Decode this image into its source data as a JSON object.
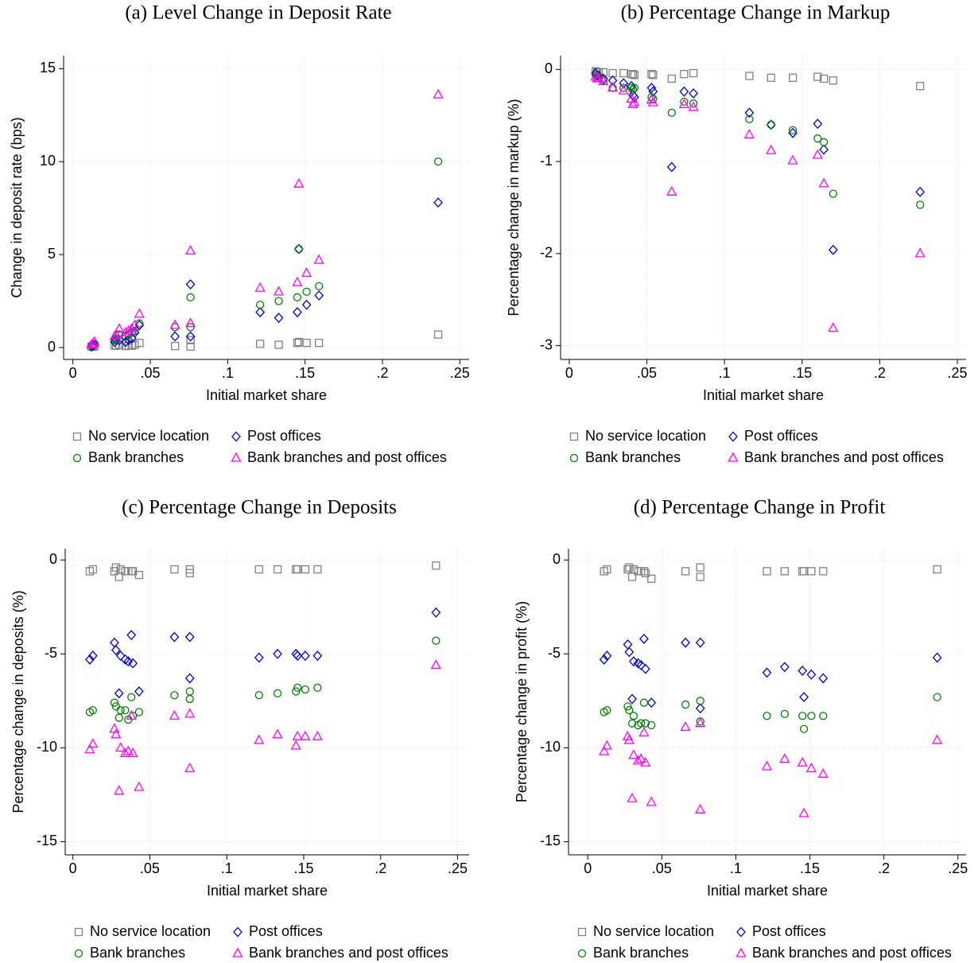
{
  "chart_data": [
    {
      "type": "scatter",
      "title": "(a) Level Change in Deposit Rate",
      "x_label": "Initial market share",
      "y_label": "Change in deposit rate (bps)",
      "x": [
        0.012,
        0.013,
        0.014,
        0.027,
        0.028,
        0.03,
        0.034,
        0.036,
        0.038,
        0.04,
        0.043,
        0.066,
        0.076,
        0.076,
        0.121,
        0.133,
        0.145,
        0.146,
        0.151,
        0.159,
        0.236
      ],
      "series": [
        {
          "name": "No service location",
          "color": "#808080",
          "marker": "square",
          "values": [
            0.05,
            0.05,
            0.08,
            0.1,
            0.1,
            0.15,
            0.08,
            0.1,
            0.1,
            0.15,
            0.25,
            0.08,
            0.05,
            0.4,
            0.2,
            0.15,
            0.25,
            0.3,
            0.25,
            0.25,
            0.7
          ]
        },
        {
          "name": "Post offices",
          "color": "#0000cc",
          "marker": "diamond",
          "values": [
            0.05,
            0.1,
            0.15,
            0.3,
            0.4,
            0.4,
            0.3,
            0.4,
            0.5,
            0.8,
            1.2,
            0.6,
            0.6,
            3.4,
            1.9,
            1.6,
            1.9,
            5.3,
            2.3,
            2.8,
            7.8
          ]
        },
        {
          "name": "Bank branches",
          "color": "#008000",
          "marker": "circle",
          "values": [
            0.1,
            0.15,
            0.2,
            0.4,
            0.5,
            0.7,
            0.6,
            0.7,
            0.8,
            0.9,
            1.3,
            1.1,
            1.1,
            2.7,
            2.3,
            2.5,
            2.7,
            5.3,
            3.0,
            3.3,
            10.0
          ]
        },
        {
          "name": "Bank branches and post offices",
          "color": "#ff00ff",
          "marker": "triangle",
          "values": [
            0.15,
            0.2,
            0.3,
            0.6,
            0.7,
            1.0,
            0.8,
            0.9,
            1.0,
            1.2,
            1.8,
            1.2,
            1.3,
            5.2,
            3.2,
            3.0,
            3.5,
            8.8,
            4.0,
            4.7,
            13.6
          ]
        }
      ],
      "xlim": [
        -0.006,
        0.256
      ],
      "ylim": [
        -0.64,
        15.7
      ],
      "xticks": [
        0,
        {
          "value": 0.05,
          "label": ".05"
        },
        {
          "value": 0.1,
          "label": ".1"
        },
        {
          "value": 0.15,
          "label": ".15"
        },
        {
          "value": 0.2,
          "label": ".2"
        },
        {
          "value": 0.25,
          "label": ".25"
        }
      ],
      "yticks": [
        0,
        5,
        10,
        15
      ],
      "grid": true,
      "legend": "bottom"
    },
    {
      "type": "scatter",
      "title": "(b) Percentage Change in Markup",
      "x_label": "Initial market share",
      "y_label": "Percentage change in markup (%)",
      "x": [
        0.017,
        0.018,
        0.019,
        0.022,
        0.028,
        0.035,
        0.04,
        0.041,
        0.042,
        0.053,
        0.054,
        0.066,
        0.074,
        0.08,
        0.116,
        0.13,
        0.144,
        0.16,
        0.164,
        0.17,
        0.226
      ],
      "series": [
        {
          "name": "No service location",
          "color": "#808080",
          "marker": "square",
          "values": [
            -0.02,
            -0.03,
            -0.03,
            -0.03,
            -0.04,
            -0.04,
            -0.05,
            -0.05,
            -0.06,
            -0.05,
            -0.06,
            -0.1,
            -0.05,
            -0.04,
            -0.07,
            -0.09,
            -0.09,
            -0.08,
            -0.1,
            -0.12,
            -0.18
          ]
        },
        {
          "name": "Post offices",
          "color": "#0000cc",
          "marker": "diamond",
          "values": [
            -0.04,
            -0.06,
            -0.07,
            -0.1,
            -0.12,
            -0.15,
            -0.18,
            -0.28,
            -0.3,
            -0.2,
            -0.24,
            -1.06,
            -0.24,
            -0.26,
            -0.47,
            -0.6,
            -0.69,
            -0.59,
            -0.87,
            -1.96,
            -1.33
          ]
        },
        {
          "name": "Bank branches",
          "color": "#008000",
          "marker": "circle",
          "values": [
            -0.06,
            -0.08,
            -0.08,
            -0.12,
            -0.2,
            -0.2,
            -0.2,
            -0.22,
            -0.2,
            -0.3,
            -0.32,
            -0.47,
            -0.35,
            -0.37,
            -0.54,
            -0.6,
            -0.66,
            -0.75,
            -0.79,
            -1.35,
            -1.47
          ]
        },
        {
          "name": "Bank branches and post offices",
          "color": "#ff00ff",
          "marker": "triangle",
          "values": [
            -0.08,
            -0.1,
            -0.1,
            -0.13,
            -0.2,
            -0.23,
            -0.32,
            -0.38,
            -0.36,
            -0.33,
            -0.36,
            -1.33,
            -0.38,
            -0.41,
            -0.71,
            -0.88,
            -0.99,
            -0.93,
            -1.24,
            -2.81,
            -2.0
          ]
        }
      ],
      "xlim": [
        -0.0056,
        0.2556
      ],
      "ylim": [
        -3.15,
        0.15
      ],
      "xticks": [
        0,
        {
          "value": 0.05,
          "label": ".05"
        },
        {
          "value": 0.1,
          "label": ".1"
        },
        {
          "value": 0.15,
          "label": ".15"
        },
        {
          "value": 0.2,
          "label": ".2"
        },
        {
          "value": 0.25,
          "label": ".25"
        }
      ],
      "yticks": [
        -3,
        -2,
        -1,
        0
      ],
      "grid": true,
      "legend": "bottom"
    },
    {
      "type": "scatter",
      "title": "(c) Percentage Change in Deposits",
      "x_label": "Initial market share",
      "y_label": "Percentage change in deposits (%)",
      "x": [
        0.011,
        0.013,
        0.027,
        0.028,
        0.03,
        0.031,
        0.034,
        0.036,
        0.038,
        0.039,
        0.043,
        0.066,
        0.076,
        0.076,
        0.121,
        0.133,
        0.145,
        0.146,
        0.151,
        0.159,
        0.236
      ],
      "series": [
        {
          "name": "No service location",
          "color": "#808080",
          "marker": "square",
          "values": [
            -0.6,
            -0.5,
            -0.6,
            -0.4,
            -0.9,
            -0.5,
            -0.6,
            -0.6,
            -0.6,
            -0.6,
            -0.8,
            -0.5,
            -0.5,
            -0.7,
            -0.5,
            -0.5,
            -0.5,
            -0.5,
            -0.5,
            -0.5,
            -0.3
          ]
        },
        {
          "name": "Post offices",
          "color": "#0000cc",
          "marker": "diamond",
          "values": [
            -5.3,
            -5.1,
            -4.4,
            -4.8,
            -7.1,
            -5.1,
            -5.3,
            -5.4,
            -4.0,
            -5.5,
            -7.0,
            -4.1,
            -4.1,
            -6.3,
            -5.2,
            -5.0,
            -5.0,
            -5.1,
            -5.1,
            -5.1,
            -2.8
          ]
        },
        {
          "name": "Bank branches",
          "color": "#008000",
          "marker": "circle",
          "values": [
            -8.1,
            -8.0,
            -7.6,
            -7.8,
            -8.4,
            -8.0,
            -8.0,
            -8.5,
            -7.3,
            -8.3,
            -8.1,
            -7.2,
            -7.0,
            -7.4,
            -7.2,
            -7.1,
            -7.0,
            -6.8,
            -6.9,
            -6.8,
            -4.3
          ]
        },
        {
          "name": "Bank branches and post offices",
          "color": "#ff00ff",
          "marker": "triangle",
          "values": [
            -10.1,
            -9.8,
            -9.0,
            -9.3,
            -12.3,
            -10.0,
            -10.3,
            -10.2,
            -8.3,
            -10.3,
            -12.1,
            -8.3,
            -8.2,
            -11.1,
            -9.6,
            -9.3,
            -9.9,
            -9.4,
            -9.4,
            -9.4,
            -5.6
          ]
        }
      ],
      "xlim": [
        -0.005,
        0.2575
      ],
      "ylim": [
        -15.7,
        0.6
      ],
      "xticks": [
        0,
        {
          "value": 0.05,
          "label": ".05"
        },
        {
          "value": 0.1,
          "label": ".1"
        },
        {
          "value": 0.15,
          "label": ".15"
        },
        {
          "value": 0.2,
          "label": ".2"
        },
        {
          "value": 0.25,
          "label": ".25"
        }
      ],
      "yticks": [
        -15,
        -10,
        -5,
        0
      ],
      "grid": true,
      "legend": "bottom"
    },
    {
      "type": "scatter",
      "title": "(d) Percentage Change in Profit",
      "x_label": "Initial market share",
      "y_label": "Percentage change in profit (%)",
      "x": [
        0.011,
        0.013,
        0.027,
        0.028,
        0.03,
        0.031,
        0.034,
        0.036,
        0.038,
        0.039,
        0.043,
        0.066,
        0.076,
        0.076,
        0.121,
        0.133,
        0.145,
        0.146,
        0.151,
        0.159,
        0.236
      ],
      "series": [
        {
          "name": "No service location",
          "color": "#808080",
          "marker": "square",
          "values": [
            -0.6,
            -0.5,
            -0.5,
            -0.4,
            -0.9,
            -0.5,
            -0.6,
            -0.6,
            -0.6,
            -0.7,
            -1.0,
            -0.6,
            -0.4,
            -0.9,
            -0.6,
            -0.6,
            -0.6,
            -0.6,
            -0.6,
            -0.6,
            -0.5
          ]
        },
        {
          "name": "Post offices",
          "color": "#0000cc",
          "marker": "diamond",
          "values": [
            -5.3,
            -5.1,
            -4.5,
            -4.9,
            -7.4,
            -5.4,
            -5.5,
            -5.6,
            -4.2,
            -5.8,
            -7.6,
            -4.4,
            -4.4,
            -7.9,
            -6.0,
            -5.7,
            -5.9,
            -7.3,
            -6.1,
            -6.3,
            -5.2
          ]
        },
        {
          "name": "Bank branches",
          "color": "#008000",
          "marker": "circle",
          "values": [
            -8.1,
            -8.0,
            -7.8,
            -8.0,
            -8.7,
            -8.3,
            -8.8,
            -8.7,
            -7.6,
            -8.7,
            -8.8,
            -7.7,
            -7.5,
            -8.6,
            -8.3,
            -8.2,
            -8.3,
            -9.0,
            -8.3,
            -8.3,
            -7.3
          ]
        },
        {
          "name": "Bank branches and post offices",
          "color": "#ff00ff",
          "marker": "triangle",
          "values": [
            -10.2,
            -9.9,
            -9.4,
            -9.6,
            -12.7,
            -10.4,
            -10.7,
            -10.6,
            -9.2,
            -10.8,
            -12.9,
            -8.9,
            -8.7,
            -13.3,
            -11.0,
            -10.6,
            -10.8,
            -13.5,
            -11.1,
            -11.4,
            -9.6
          ]
        }
      ],
      "xlim": [
        -0.013,
        0.2555
      ],
      "ylim": [
        -15.7,
        0.6
      ],
      "xticks": [
        0,
        {
          "value": 0.05,
          "label": ".05"
        },
        {
          "value": 0.1,
          "label": ".1"
        },
        {
          "value": 0.15,
          "label": ".15"
        },
        {
          "value": 0.2,
          "label": ".2"
        },
        {
          "value": 0.25,
          "label": ".25"
        }
      ],
      "yticks": [
        -15,
        -10,
        -5,
        0
      ],
      "grid": true,
      "legend": "bottom"
    }
  ]
}
